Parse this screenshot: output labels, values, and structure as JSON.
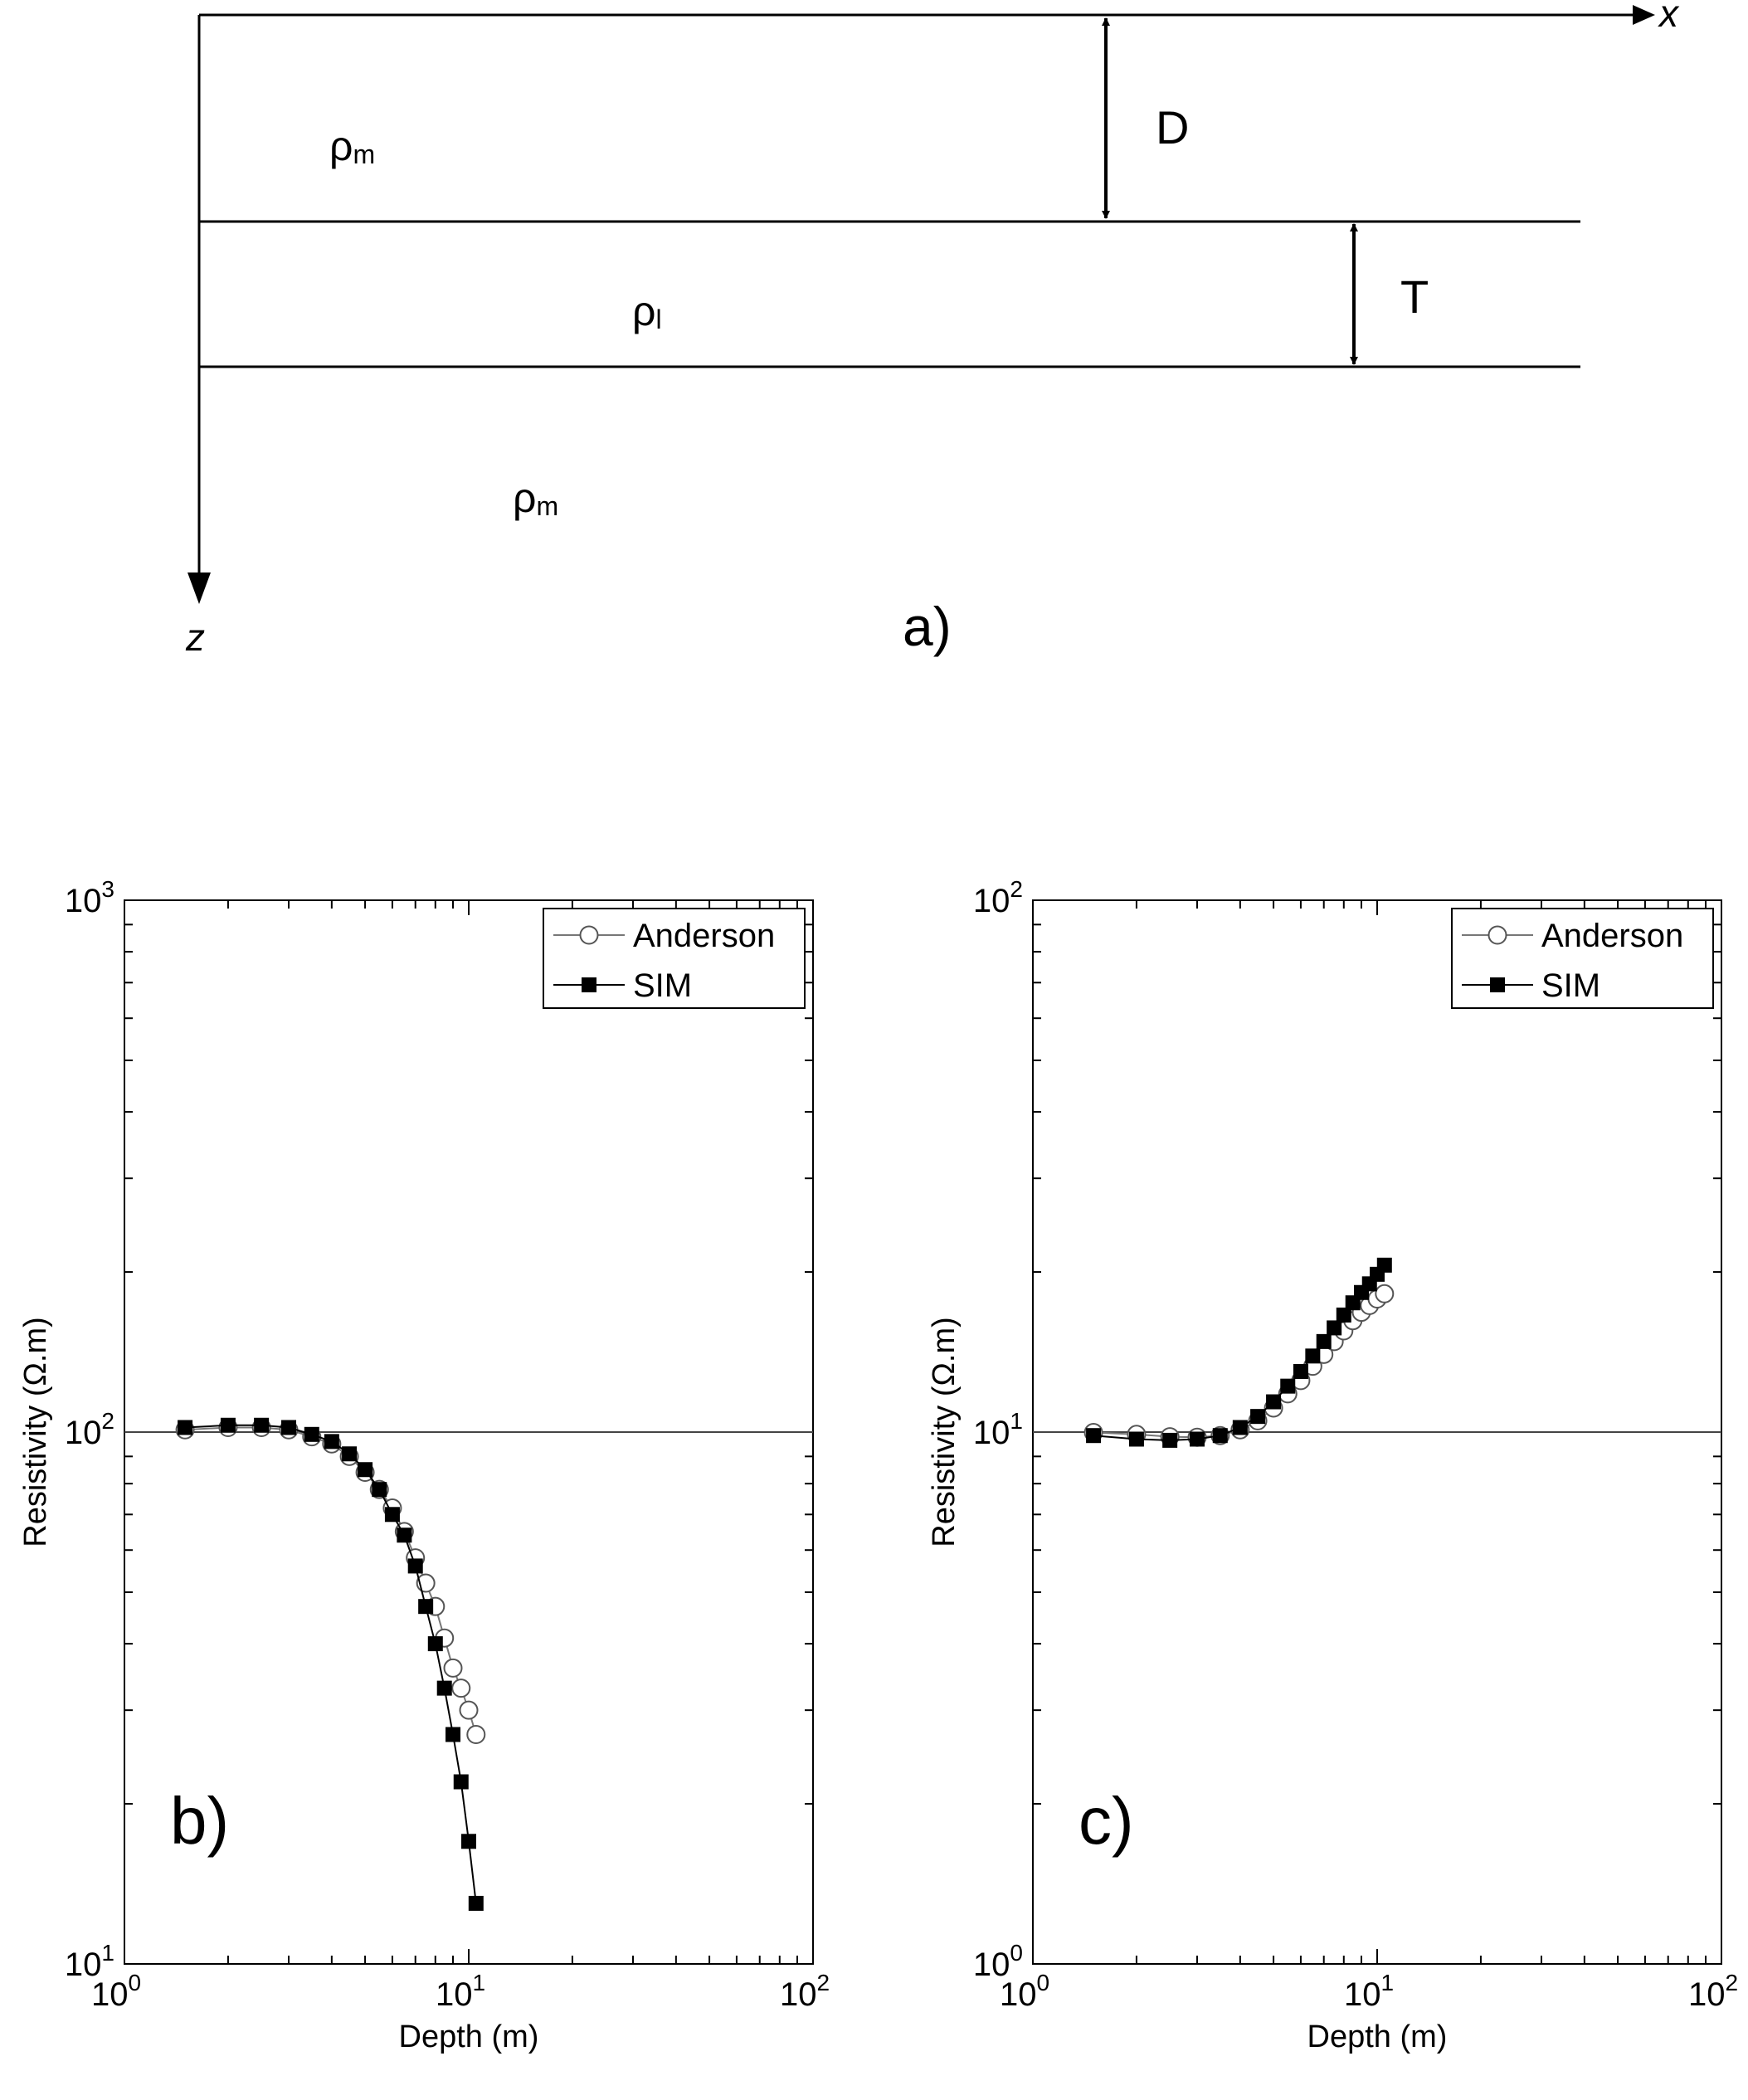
{
  "schematic": {
    "x_axis_label": "x",
    "z_axis_label": "z",
    "thickness_D": "D",
    "thickness_T": "T",
    "rho_symbol": "ρ",
    "top_layer_subscript": "m",
    "middle_layer_subscript": "l",
    "bottom_layer_subscript": "m",
    "panel_label": "a)"
  },
  "chart_data": [
    {
      "type": "line",
      "panel_label": "b)",
      "xlabel": "Depth (m)",
      "ylabel": "Resistivity (Ω.m)",
      "xscale": "log",
      "yscale": "log",
      "xlim": [
        1,
        100
      ],
      "ylim": [
        10,
        1000
      ],
      "x_ticks": [
        {
          "base": "10",
          "exp": "0"
        },
        {
          "base": "10",
          "exp": "1"
        },
        {
          "base": "10",
          "exp": "2"
        }
      ],
      "y_ticks": [
        {
          "base": "10",
          "exp": "1"
        },
        {
          "base": "10",
          "exp": "2"
        },
        {
          "base": "10",
          "exp": "3"
        }
      ],
      "reference_line": 100,
      "legend_position": "top-right",
      "series": [
        {
          "name": "Anderson",
          "marker": "open-circle",
          "x": [
            1.5,
            2.0,
            2.5,
            3.0,
            3.5,
            4.0,
            4.5,
            5.0,
            5.5,
            6.0,
            6.5,
            7.0,
            7.5,
            8.0,
            8.5,
            9.0,
            9.5,
            10.0,
            10.5
          ],
          "y": [
            101,
            102,
            102,
            101,
            98,
            95,
            90,
            84,
            78,
            72,
            65,
            58,
            52,
            47,
            41,
            36,
            33,
            30,
            27
          ]
        },
        {
          "name": "SIM",
          "marker": "filled-square",
          "x": [
            1.5,
            2.0,
            2.5,
            3.0,
            3.5,
            4.0,
            4.5,
            5.0,
            5.5,
            6.0,
            6.5,
            7.0,
            7.5,
            8.0,
            8.5,
            9.0,
            9.5,
            10.0,
            10.5
          ],
          "y": [
            102,
            103,
            103,
            102,
            99,
            96,
            91,
            85,
            78,
            70,
            64,
            56,
            47,
            40,
            33,
            27,
            22,
            17,
            13
          ]
        }
      ]
    },
    {
      "type": "line",
      "panel_label": "c)",
      "xlabel": "Depth (m)",
      "ylabel": "Resistivity (Ω.m)",
      "xscale": "log",
      "yscale": "log",
      "xlim": [
        1,
        100
      ],
      "ylim": [
        1,
        100
      ],
      "x_ticks": [
        {
          "base": "10",
          "exp": "0"
        },
        {
          "base": "10",
          "exp": "1"
        },
        {
          "base": "10",
          "exp": "2"
        }
      ],
      "y_ticks": [
        {
          "base": "10",
          "exp": "0"
        },
        {
          "base": "10",
          "exp": "1"
        },
        {
          "base": "10",
          "exp": "2"
        }
      ],
      "reference_line": 10,
      "legend_position": "top-right",
      "series": [
        {
          "name": "Anderson",
          "marker": "open-circle",
          "x": [
            1.5,
            2.0,
            2.5,
            3.0,
            3.5,
            4.0,
            4.5,
            5.0,
            5.5,
            6.0,
            6.5,
            7.0,
            7.5,
            8.0,
            8.5,
            9.0,
            9.5,
            10.0,
            10.5
          ],
          "y": [
            9.98,
            9.9,
            9.8,
            9.78,
            9.85,
            10.1,
            10.5,
            11.1,
            11.8,
            12.5,
            13.3,
            14.0,
            14.8,
            15.5,
            16.2,
            16.8,
            17.3,
            17.8,
            18.2
          ]
        },
        {
          "name": "SIM",
          "marker": "filled-square",
          "x": [
            1.5,
            2.0,
            2.5,
            3.0,
            3.5,
            4.0,
            4.5,
            5.0,
            5.5,
            6.0,
            6.5,
            7.0,
            7.5,
            8.0,
            8.5,
            9.0,
            9.5,
            10.0,
            10.5
          ],
          "y": [
            9.85,
            9.7,
            9.65,
            9.7,
            9.85,
            10.2,
            10.7,
            11.4,
            12.2,
            13.0,
            13.9,
            14.8,
            15.7,
            16.6,
            17.5,
            18.3,
            19.0,
            19.8,
            20.6
          ]
        }
      ]
    }
  ]
}
